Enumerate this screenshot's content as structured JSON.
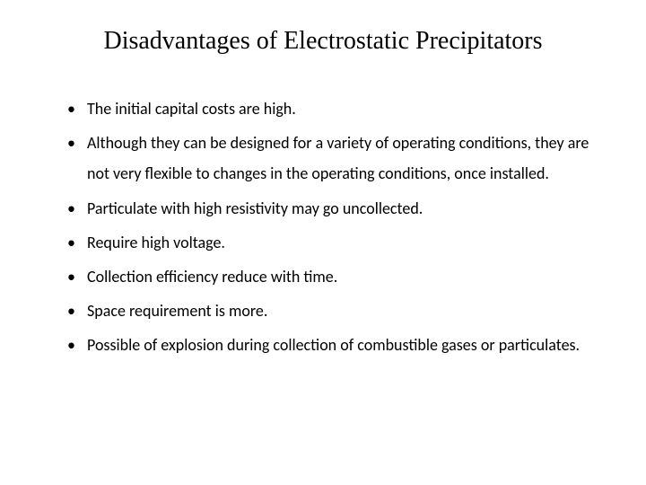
{
  "title": "Disadvantages of Electrostatic Precipitators",
  "bullets": [
    "The initial capital costs are high.",
    "Although they can be designed for a variety of operating conditions, they are not very flexible to changes in the operating conditions, once installed.",
    "Particulate with high resistivity may go uncollected.",
    "Require high voltage.",
    "Collection efficiency reduce with time.",
    "Space requirement is more.",
    "Possible of explosion during collection of combustible gases or particulates."
  ],
  "styling": {
    "background_color": "#ffffff",
    "text_color": "#000000",
    "title_font_family": "Times New Roman",
    "title_font_size": 28,
    "body_font_family": "Calibri",
    "body_font_size": 18,
    "line_height": 1.9
  }
}
